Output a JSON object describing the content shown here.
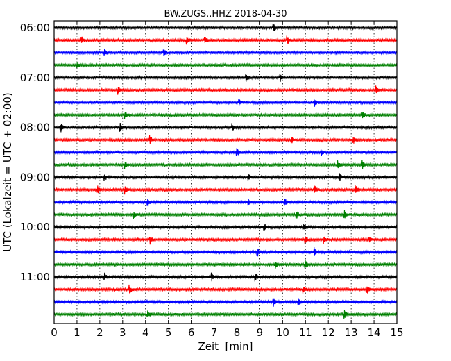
{
  "chart_data": {
    "type": "line",
    "title": "BW.ZUGS..HHZ 2018-04-30",
    "xlabel": "Zeit  [min]",
    "ylabel": "UTC (Lokalzeit = UTC + 02:00)",
    "xlim": [
      0,
      15
    ],
    "x_ticks": [
      "0",
      "1",
      "2",
      "3",
      "4",
      "5",
      "6",
      "7",
      "8",
      "9",
      "10",
      "11",
      "12",
      "13",
      "14",
      "15"
    ],
    "y_tick_labels": [
      "06:00",
      "07:00",
      "08:00",
      "09:00",
      "10:00",
      "11:00"
    ],
    "grid": "vertical dotted lines at each minute",
    "series_colors": [
      "#000000",
      "#ff0000",
      "#0000ff",
      "#008000"
    ],
    "trace_start_times": [
      "06:00",
      "06:15",
      "06:30",
      "06:45",
      "07:00",
      "07:15",
      "07:30",
      "07:45",
      "08:00",
      "08:15",
      "08:30",
      "08:45",
      "09:00",
      "09:15",
      "09:30",
      "09:45",
      "10:00",
      "10:15",
      "10:30",
      "10:45",
      "11:00",
      "11:15",
      "11:30",
      "11:45"
    ],
    "events_minutes": [
      [
        9.6
      ],
      [
        1.2,
        5.8,
        6.6,
        10.2
      ],
      [
        2.2,
        4.8
      ],
      [
        1.0
      ],
      [
        8.4,
        9.9
      ],
      [
        2.8,
        14.1
      ],
      [
        8.1,
        11.4
      ],
      [
        3.1,
        13.5
      ],
      [
        0.3,
        2.9,
        7.8
      ],
      [
        4.2,
        10.4,
        13.1
      ],
      [
        8.0,
        11.7
      ],
      [
        3.1,
        12.4,
        13.5
      ],
      [
        2.2,
        8.5,
        12.5
      ],
      [
        1.9,
        3.1,
        11.4,
        13.2
      ],
      [
        4.1,
        8.5,
        10.1
      ],
      [
        3.5,
        10.6,
        12.7
      ],
      [
        9.2,
        10.9
      ],
      [
        4.2,
        11.0,
        11.8,
        13.8
      ],
      [
        8.9,
        11.4
      ],
      [
        9.7,
        11.0
      ],
      [
        2.2,
        6.9,
        8.8
      ],
      [
        3.3,
        10.9,
        13.7
      ],
      [
        9.6,
        10.7
      ],
      [
        4.1,
        12.7
      ]
    ]
  }
}
